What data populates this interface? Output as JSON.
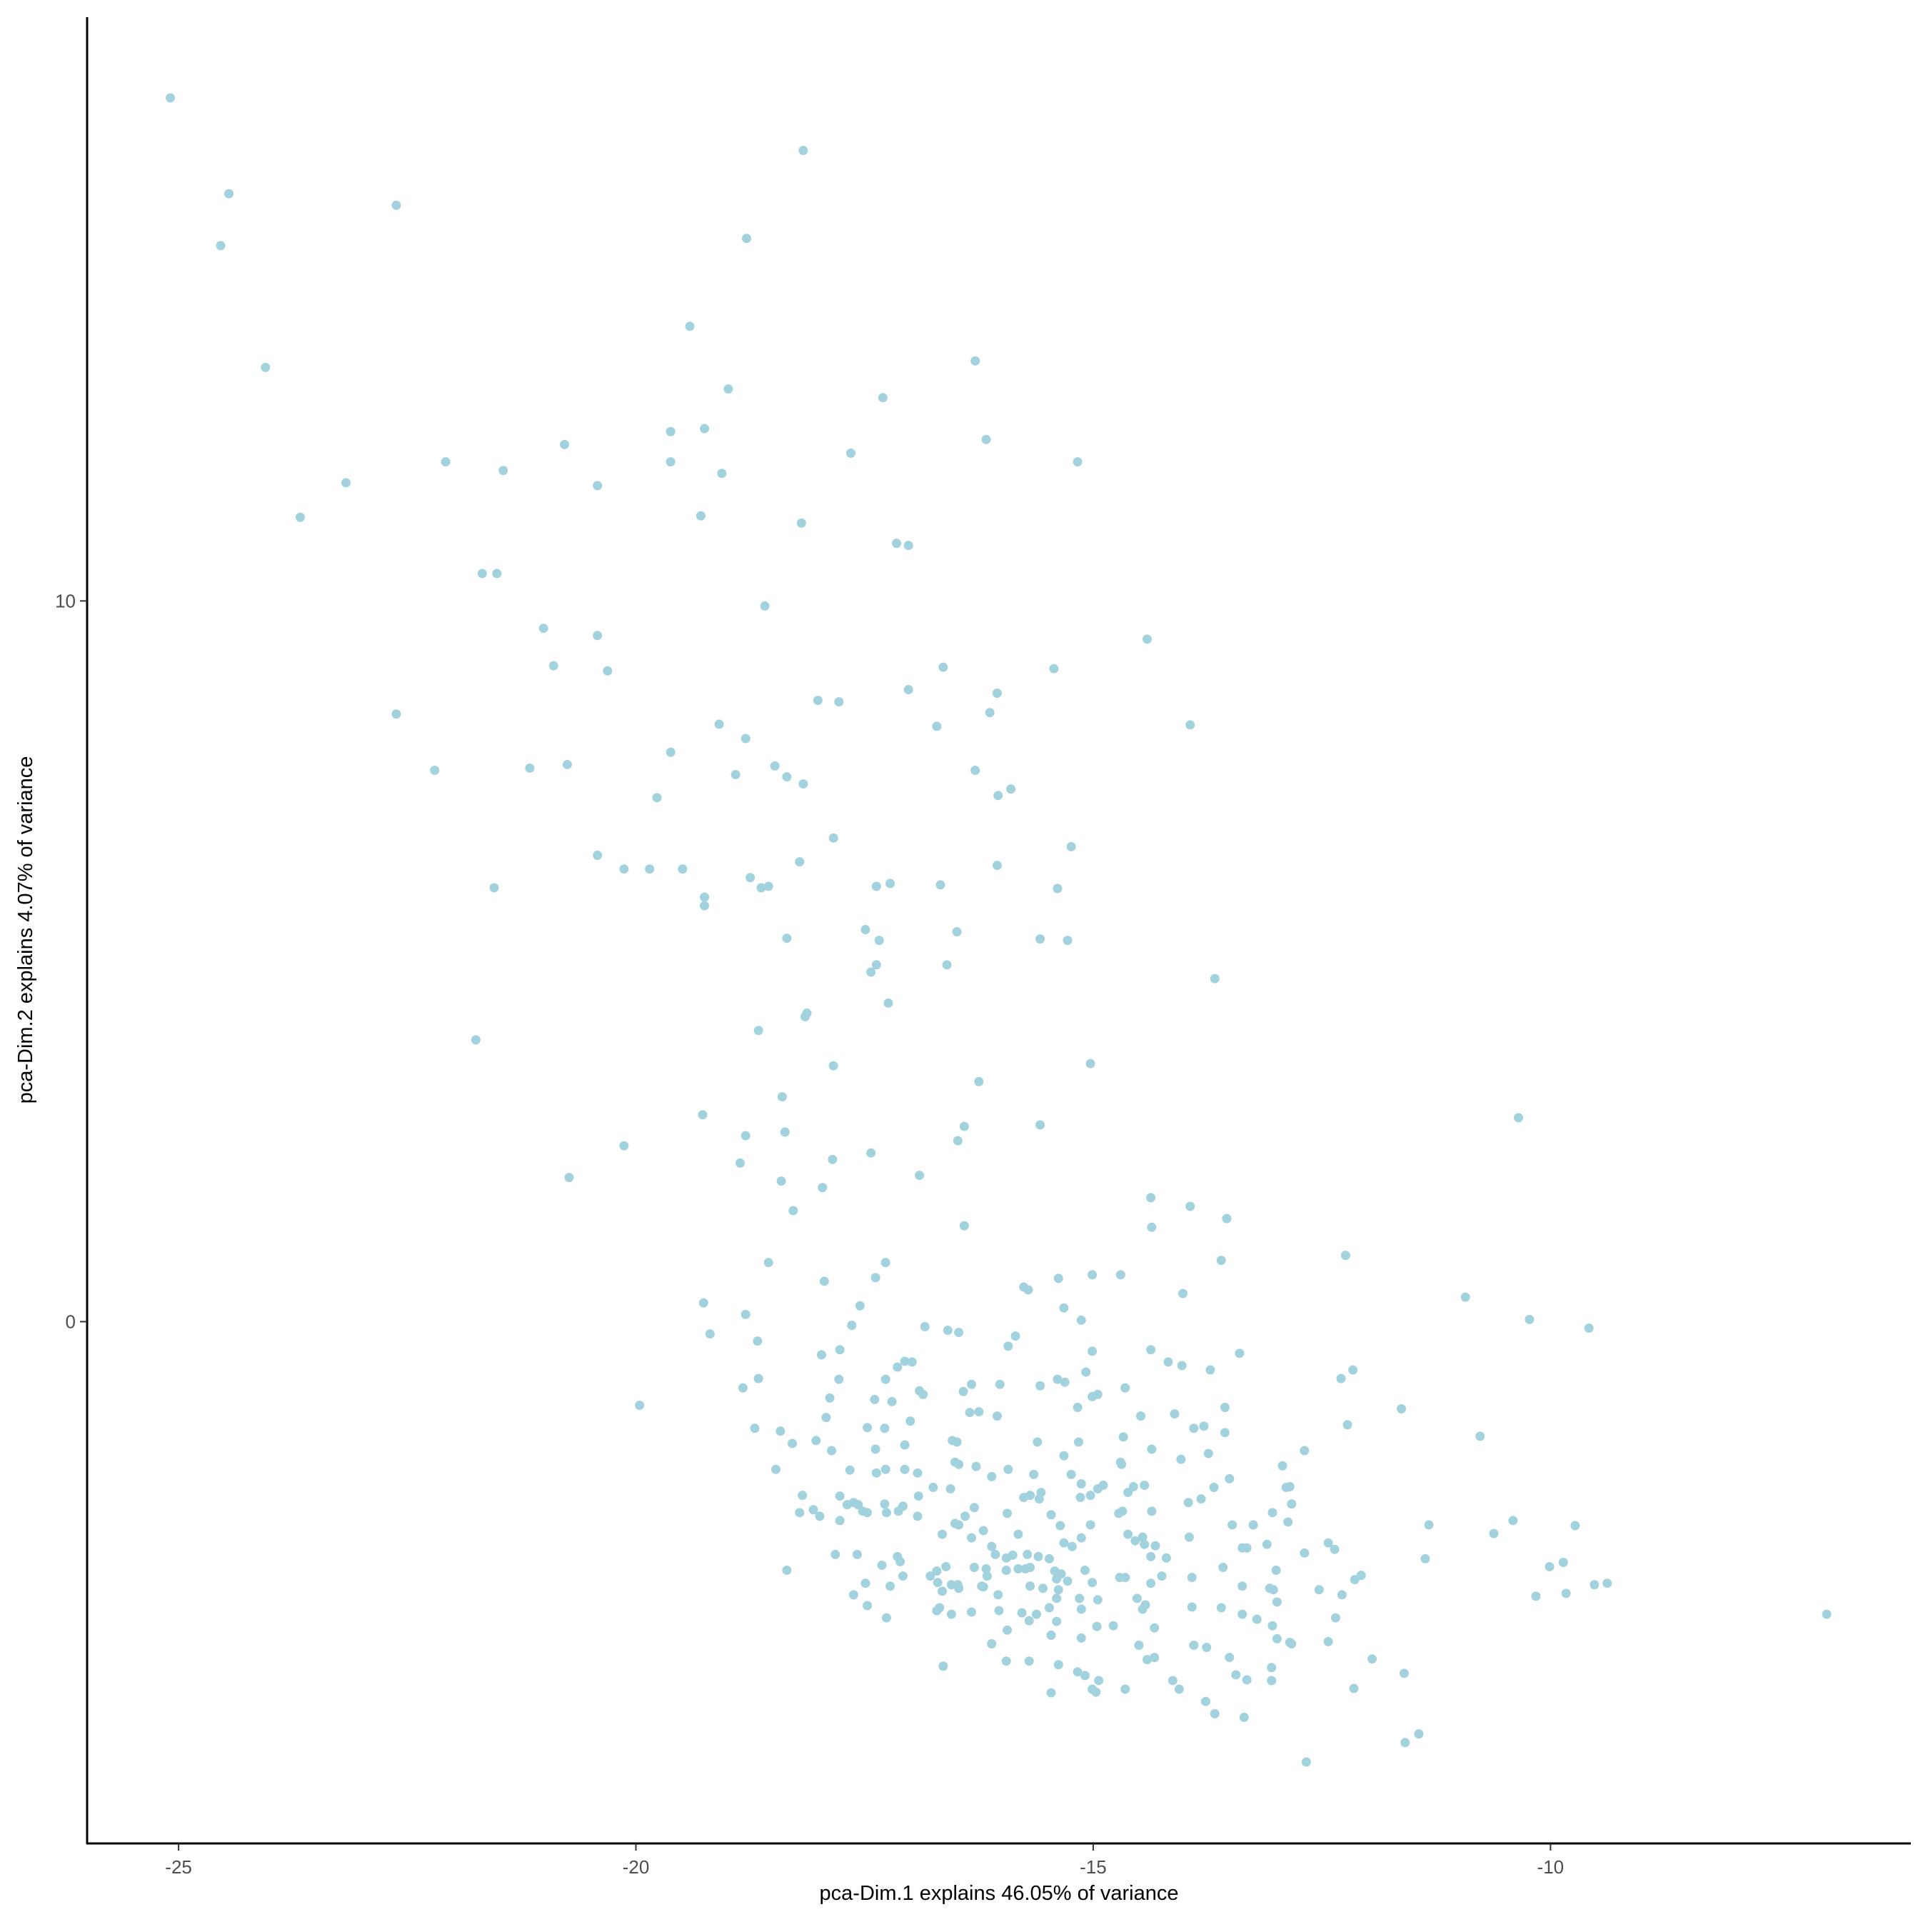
{
  "chart_data": {
    "type": "scatter",
    "x_label": "pca-Dim.1 explains 46.05% of variance",
    "y_label": "pca-Dim.2 explains 4.07% of variance",
    "color": "#a3d2df",
    "xlim": [
      -26,
      -6.06
    ],
    "ylim": [
      -7.24,
      18.1
    ],
    "xticks": [
      -25,
      -20,
      -15,
      -10
    ],
    "yticks": [
      0,
      10
    ],
    "grid": false,
    "x": [
      -25.09,
      -24.45,
      -24.54,
      -22.62,
      -24.05,
      -18.17,
      -18.79,
      -19.41,
      -18.99,
      -16.29,
      -17.3,
      -16.17,
      -19.62,
      -19.25,
      -20.78,
      -22.08,
      -21.45,
      -19.62,
      -19.06,
      -17.65,
      -15.17,
      -23.17,
      -20.42,
      -23.67,
      -19.29,
      -18.19,
      -17.15,
      -17.02,
      -21.68,
      -21.52,
      -18.59,
      -21.01,
      -20.42,
      -14.41,
      -20.9,
      -20.31,
      -16.64,
      -15.43,
      -17.02,
      -16.05,
      -18.01,
      -17.78,
      -16.13,
      -22.62,
      -19.09,
      -16.71,
      -13.94,
      -18.8,
      -19.62,
      -22.2,
      -21.16,
      -20.75,
      -18.48,
      -18.91,
      -18.35,
      -16.29,
      -18.17,
      -15.9,
      -16.04,
      -19.77,
      -17.84,
      -15.24,
      -20.42,
      -20.13,
      -19.85,
      -19.49,
      -18.21,
      -16.05,
      -18.75,
      -18.63,
      -18.55,
      -21.55,
      -17.37,
      -17.22,
      -16.67,
      -15.39,
      -19.25,
      -19.25,
      -17.49,
      -16.49,
      -18.35,
      -17.34,
      -15.58,
      -15.28,
      -16.6,
      -17.37,
      -17.43,
      -13.67,
      -17.24,
      -18.13,
      -18.15,
      -18.66,
      -21.75,
      -15.03,
      -17.84,
      -16.25,
      -19.27,
      -18.4,
      -10.35,
      -16.41,
      -15.58,
      -18.37,
      -18.8,
      -16.48,
      -20.13,
      -17.43,
      -17.85,
      -18.86,
      -16.9,
      -20.73,
      -18.41,
      -17.96,
      -14.37,
      -13.94,
      -18.28,
      -13.54,
      -16.41,
      -14.36,
      -12.24,
      -18.55,
      -17.27,
      -13.6,
      -15.38,
      -15.01,
      -14.7,
      -17.94,
      -17.38,
      -15.76,
      -15.71,
      -14.02,
      -10.93,
      -19.26,
      -17.55,
      -15.32,
      -18.8,
      -10.23,
      -15.13,
      -9.58,
      -19.19,
      -17.64,
      -16.84,
      -16.59,
      -16.47,
      -15.85,
      -18.67,
      -17.97,
      -17.77,
      -14.37,
      -13.4,
      -15.93,
      -15.01,
      -17.06,
      -16.98,
      -17.14,
      -14.18,
      -14.03,
      -13.72,
      -15.08,
      -12.16,
      -12.29,
      -17.27,
      -17.78,
      -15.39,
      -15.31,
      -18.66,
      -16.33,
      -15.58,
      -18.83,
      -14.65,
      -16.9,
      -16.42,
      -16.86,
      -17.88,
      -17.39,
      -17.2,
      -19.96,
      -14.95,
      -15.01,
      -16.02,
      -11.63,
      -16.25,
      -16.35,
      -15.17,
      -14.48,
      -13.56,
      -14.11,
      -16.05,
      -17.92,
      -17,
      -18.7,
      -18.42,
      -17.47,
      -17.28,
      -13.79,
      -13.9,
      -13.56,
      -12.22,
      -10.77,
      -14.67,
      -18.03,
      -18.29,
      -16.54,
      -16.49,
      -15.61,
      -15.16,
      -17.06,
      -14.36,
      -12.69,
      -17.86,
      -17.38,
      -13.74,
      -15.32,
      -14.04,
      -16.51,
      -14.7,
      -14.69,
      -12.93,
      -16.47,
      -16.28,
      -15.93,
      -18.47,
      -17.27,
      -17.06,
      -17.66,
      -17.37,
      -16.92,
      -15.65,
      -16.11,
      -15.24,
      -13.51,
      -15.13,
      -14.89,
      -14.44,
      -14.56,
      -14.95,
      -16.75,
      -16.56,
      -15.57,
      -13.68,
      -12.85,
      -12.89,
      -14.62,
      -15.03,
      -18.18,
      -17.77,
      -16.91,
      -15.69,
      -15.14,
      -13.82,
      -15.59,
      -17.62,
      -17.69,
      -17.57,
      -17.28,
      -15.76,
      -13.96,
      -17.08,
      -12.83,
      -16.3,
      -14.36,
      -17.47,
      -17.52,
      -14.68,
      -13.04,
      -18.06,
      -18.21,
      -17.26,
      -17.99,
      -17.13,
      -16.92,
      -16.4,
      -15.94,
      -14.72,
      -15.46,
      -17.77,
      -16.47,
      -16.51,
      -13.48,
      -13.25,
      -12.87,
      -15.03,
      -15.36,
      -11.33,
      -9.73,
      -10.41,
      -16.2,
      -16.65,
      -14.62,
      -15.82,
      -13.95,
      -16.33,
      -15.13,
      -14.46,
      -10.62,
      -14.54,
      -12.43,
      -13.1,
      -14.44,
      -15.32,
      -14.32,
      -15.23,
      -16.11,
      -13.37,
      -13.32,
      -12.36,
      -14.37,
      -14.2,
      -16.07,
      -15.88,
      -15.72,
      -15.6,
      -15.48,
      -15.95,
      -12.69,
      -11.37,
      -17.82,
      -17.58,
      -17.14,
      -17.11,
      -17.31,
      -16.61,
      -10.01,
      -9.86,
      -16.71,
      -16.3,
      -16.17,
      -15.95,
      -15.82,
      -15.74,
      -15.69,
      -15.42,
      -15.35,
      -15.09,
      -13.58,
      -13,
      -18.35,
      -12.07,
      -12.14,
      -16.78,
      -16.16,
      -14.25,
      -13.92,
      -17.08,
      -15.4,
      -15.01,
      -14.71,
      -15.28,
      -14.65,
      -14.37,
      -16.7,
      -16.55,
      -17.49,
      -17.22,
      -16.48,
      -16.22,
      -15.69,
      -15.55,
      -13.37,
      -13.07,
      -13.03,
      -12.53,
      -9.52,
      -9.38,
      -16.65,
      -16.47,
      -16.2,
      -16.04,
      -15.38,
      -12.28,
      -15.15,
      -14.95,
      -14.52,
      -12.99,
      -10.16,
      -9.83,
      -17.62,
      -15.4,
      -14.43,
      -14.46,
      -16.03,
      -16.68,
      -15.48,
      -15.13,
      -13.92,
      -13.6,
      -13.37,
      -17.47,
      -16.71,
      -16.55,
      -16.33,
      -15.78,
      -15.62,
      -13.21,
      -12.35,
      -6.98,
      -17.26,
      -15.7,
      -15.4,
      -14.78,
      -14.33,
      -13.04,
      -14.96,
      -15.94,
      -15.13,
      -15.46,
      -12.99,
      -12.85,
      -12.83,
      -12.43,
      -14.5,
      -13.9,
      -13.76,
      -16.11,
      -11.95,
      -13.51,
      -15.95,
      -15.7,
      -15.38,
      -16.64,
      -14.41,
      -14.33,
      -13.05,
      -13.44,
      -15.17,
      -15.09,
      -11.6,
      -14.13,
      -14.94,
      -13.32,
      -13.05,
      -12.15,
      -15.01,
      -14.97,
      -14.65,
      -14.06,
      -15.46,
      -13.77,
      -13.67,
      -13.35,
      -11.44,
      -11.59,
      -12.67
    ],
    "values": [
      16.98,
      15.65,
      14.93,
      15.49,
      13.24,
      16.25,
      15.03,
      13.81,
      12.94,
      13.33,
      12.82,
      12.24,
      12.35,
      12.39,
      12.17,
      11.93,
      11.81,
      11.93,
      11.77,
      12.05,
      11.93,
      11.64,
      11.6,
      11.16,
      11.18,
      11.08,
      10.8,
      10.77,
      10.38,
      10.38,
      9.93,
      9.62,
      9.52,
      9.47,
      9.1,
      9.03,
      9.08,
      9.06,
      8.77,
      8.72,
      8.62,
      8.6,
      8.45,
      8.43,
      8.29,
      8.26,
      8.28,
      8.09,
      7.9,
      7.65,
      7.68,
      7.73,
      7.71,
      7.59,
      7.56,
      7.65,
      7.46,
      7.39,
      7.3,
      7.27,
      6.71,
      6.59,
      6.47,
      6.28,
      6.28,
      6.28,
      6.38,
      6.33,
      6.16,
      6.02,
      6.04,
      6.02,
      6.04,
      6.08,
      6.06,
      6.01,
      5.89,
      5.77,
      5.44,
      5.41,
      5.32,
      5.29,
      5.31,
      5.29,
      4.95,
      4.95,
      4.85,
      4.76,
      4.42,
      4.28,
      4.23,
      4.04,
      3.91,
      3.58,
      3.55,
      3.33,
      2.87,
      3.12,
      2.83,
      2.71,
      2.73,
      2.63,
      2.58,
      2.51,
      2.44,
      2.34,
      2.25,
      2.2,
      2.03,
      2,
      1.95,
      1.86,
      1.72,
      1.6,
      1.54,
      1.43,
      1.33,
      1.31,
      0.92,
      0.82,
      0.82,
      0.85,
      0.6,
      0.65,
      0.65,
      0.56,
      0.61,
      0.48,
      0.44,
      0.39,
      0.34,
      0.26,
      0.22,
      0.19,
      0.1,
      0.03,
      0.02,
      -0.09,
      -0.17,
      -0.05,
      -0.07,
      -0.12,
      -0.15,
      -0.2,
      -0.27,
      -0.46,
      -0.39,
      -0.39,
      -0.44,
      -0.34,
      -0.41,
      -0.55,
      -0.56,
      -0.63,
      -0.56,
      -0.61,
      -0.67,
      -0.7,
      -0.67,
      -0.79,
      -0.8,
      -0.8,
      -0.8,
      -0.84,
      -0.79,
      -0.87,
      -0.89,
      -0.92,
      -0.92,
      -0.96,
      -0.97,
      -1.01,
      -1.06,
      -1.08,
      -1.11,
      -1.16,
      -1.01,
      -1.04,
      -0.87,
      -1.21,
      -1.25,
      -1.26,
      -1.19,
      -1.31,
      -1.19,
      -1.28,
      -1.31,
      -1.33,
      -1.38,
      -1.48,
      -1.52,
      -1.47,
      -1.48,
      -1.45,
      -1.48,
      -1.54,
      -1.43,
      -1.59,
      -1.6,
      -1.65,
      -1.69,
      -1.65,
      -1.67,
      -1.67,
      -1.67,
      -1.71,
      -1.77,
      -1.79,
      -1.79,
      -1.77,
      -1.83,
      -1.86,
      -1.91,
      -1.95,
      -1.95,
      -1.98,
      -2,
      -1.98,
      -2.01,
      -2.05,
      -2.05,
      -2.05,
      -2.05,
      -2.06,
      -2.1,
      -2.1,
      -2.12,
      -2.15,
      -2.12,
      -2.18,
      -2.25,
      -2.27,
      -2.27,
      -2.29,
      -2.32,
      -2.3,
      -2.32,
      -2.37,
      -2.3,
      -2.29,
      -2.3,
      -2.37,
      -2.41,
      -2.41,
      -2.42,
      -2.42,
      -2.41,
      -2.44,
      -2.46,
      -2.46,
      -2.51,
      -2.54,
      -2.54,
      -2.53,
      -2.44,
      -2.51,
      -2.56,
      -2.53,
      -2.58,
      -2.63,
      -2.65,
      -2.63,
      -2.63,
      -2.65,
      -2.61,
      -2.65,
      -2.65,
      -2.7,
      -2.63,
      -2.7,
      -2.7,
      -2.66,
      -2.66,
      -2.68,
      -2.76,
      -2.82,
      -2.8,
      -2.82,
      -2.82,
      -2.78,
      -2.82,
      -2.83,
      -2.82,
      -2.83,
      -2.76,
      -2.9,
      -2.95,
      -2.95,
      -2.95,
      -2.99,
      -3,
      -3,
      -2.99,
      -2.94,
      -3.04,
      -3.07,
      -3.09,
      -3.09,
      -3.07,
      -3.11,
      -3.12,
      -3.12,
      -3.14,
      -3.14,
      -3.16,
      -3.26,
      -3.28,
      -3.23,
      -3.24,
      -3.23,
      -3.26,
      -3.29,
      -3.28,
      -3.21,
      -3.29,
      -3.23,
      -3.23,
      -3.26,
      -3.33,
      -3.38,
      -3.4,
      -3.4,
      -3.34,
      -3.46,
      -3.41,
      -3.43,
      -3.45,
      -3.43,
      -3.43,
      -3.41,
      -3.46,
      -3.5,
      -3.45,
      -3.41,
      -3.45,
      -3.45,
      -3.52,
      -3.58,
      -3.53,
      -3.53,
      -3.53,
      -3.55,
      -3.53,
      -3.57,
      -3.62,
      -3.55,
      -3.6,
      -3.55,
      -3.63,
      -3.62,
      -3.65,
      -3.63,
      -3.67,
      -3.65,
      -3.67,
      -3.67,
      -3.7,
      -3.67,
      -3.7,
      -3.72,
      -3.72,
      -3.65,
      -3.63,
      -3.74,
      -3.7,
      -3.68,
      -3.79,
      -3.72,
      -3.79,
      -3.84,
      -3.86,
      -3.84,
      -3.89,
      -3.81,
      -3.77,
      -3.79,
      -3.84,
      -3.93,
      -3.99,
      -4.01,
      -3.97,
      -3.97,
      -3.99,
      -3.96,
      -3.97,
      -4.06,
      -3.94,
      -4.01,
      -4.06,
      -4.03,
      -4.04,
      -4.06,
      -4.13,
      -4.11,
      -4.06,
      -4.11,
      -4.15,
      -4.16,
      -4.22,
      -4.25,
      -4.22,
      -4.23,
      -4.28,
      -4.39,
      -4.35,
      -4.4,
      -4.45,
      -4.47,
      -4.44,
      -4.49,
      -4.49,
      -4.52,
      -4.47,
      -4.68,
      -4.66,
      -4.71,
      -4.71,
      -4.76,
      -4.78,
      -4.69,
      -4.66,
      -4.8,
      -4.9,
      -4.86,
      -4.91,
      -4.88,
      -4.98,
      -4.98,
      -4.97,
      -4.98,
      -5.09,
      -5.1,
      -5.14,
      -5.1,
      -5.1,
      -5.15,
      -5.27,
      -5.44,
      -5.49,
      -5.72,
      -5.84,
      -6.11
    ]
  }
}
